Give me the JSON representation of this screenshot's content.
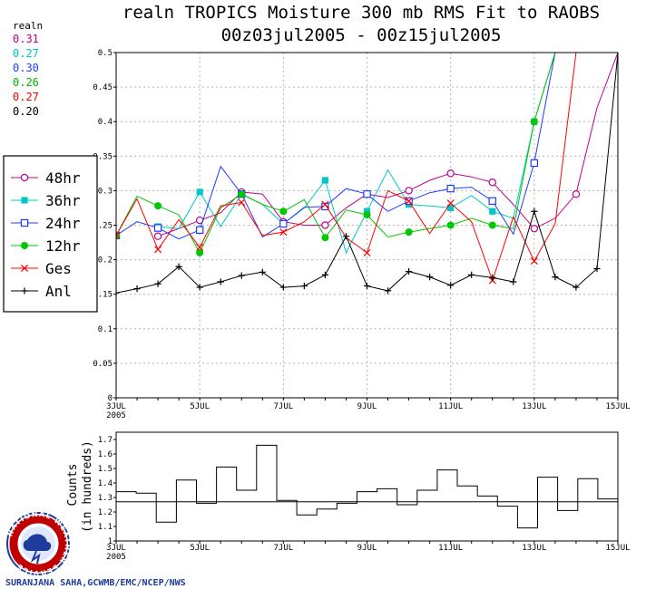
{
  "header": {
    "title_line1": "realn TROPICS Moisture 300 mb RMS Fit to RAOBS",
    "title_line2": "00z03jul2005 - 00z15jul2005"
  },
  "rms_panel": {
    "label": "realn",
    "values": [
      {
        "value": "0.31",
        "color": "#c0008c"
      },
      {
        "value": "0.27",
        "color": "#00c8c8"
      },
      {
        "value": "0.30",
        "color": "#1e3cff"
      },
      {
        "value": "0.26",
        "color": "#00b400"
      },
      {
        "value": "0.27",
        "color": "#ff0000"
      },
      {
        "value": "0.20",
        "color": "#000000"
      }
    ]
  },
  "legend": {
    "items": [
      {
        "label": "48hr",
        "marker": "open-circle",
        "color": "#c0008c"
      },
      {
        "label": "36hr",
        "marker": "filled-square",
        "color": "#00c8c8"
      },
      {
        "label": "24hr",
        "marker": "open-square",
        "color": "#1e3cff"
      },
      {
        "label": "12hr",
        "marker": "filled-circle",
        "color": "#00c800"
      },
      {
        "label": "Ges",
        "marker": "x",
        "color": "#ff0000"
      },
      {
        "label": "Anl",
        "marker": "plus",
        "color": "#000000"
      }
    ]
  },
  "lower_panel": {
    "ylabel_line1": "Counts",
    "ylabel_line2": "(in hundreds)"
  },
  "credit": {
    "text": "SURANJANA SAHA,GCWMB/EMC/NCEP/NWS",
    "logo_text": "NATIONAL WEATHER SERVICE"
  },
  "chart_data": [
    {
      "type": "line",
      "title": "realn TROPICS Moisture 300 mb RMS Fit to RAOBS",
      "subtitle": "00z03jul2005 - 00z15jul2005",
      "xlim": [
        0,
        24
      ],
      "ylim": [
        0,
        0.5
      ],
      "yticks": [
        "0",
        "0.05",
        "0.1",
        "0.15",
        "0.2",
        "0.25",
        "0.3",
        "0.35",
        "0.4",
        "0.45",
        "0.5"
      ],
      "xticks": [
        {
          "at": 0,
          "label": "3JUL",
          "sub": "2005"
        },
        {
          "at": 4,
          "label": "5JUL"
        },
        {
          "at": 8,
          "label": "7JUL"
        },
        {
          "at": 12,
          "label": "9JUL"
        },
        {
          "at": 16,
          "label": "11JUL"
        },
        {
          "at": 20,
          "label": "13JUL"
        },
        {
          "at": 24,
          "label": "15JUL"
        }
      ],
      "grid": true,
      "legend_position": "left",
      "series": [
        {
          "name": "48hr",
          "color": "#c0008c",
          "marker": "open-circle",
          "x": [
            0,
            1,
            2,
            3,
            4,
            5,
            6,
            7,
            8,
            9,
            10,
            11,
            12,
            13,
            14,
            15,
            16,
            17,
            18,
            19,
            20,
            21,
            22,
            23,
            24
          ],
          "y": [
            null,
            null,
            0.234,
            0.245,
            0.257,
            0.268,
            0.298,
            0.295,
            0.255,
            0.25,
            0.25,
            0.275,
            0.295,
            0.29,
            0.3,
            0.315,
            0.325,
            0.32,
            0.312,
            0.28,
            0.245,
            0.26,
            0.295,
            0.42,
            0.5
          ]
        },
        {
          "name": "36hr",
          "color": "#00c8c8",
          "marker": "filled-square",
          "x": [
            0,
            1,
            2,
            3,
            4,
            5,
            6,
            7,
            8,
            9,
            10,
            11,
            12,
            13,
            14,
            15,
            16,
            17,
            18,
            19,
            20,
            21,
            22,
            23,
            24
          ],
          "y": [
            null,
            null,
            0.248,
            0.245,
            0.298,
            0.248,
            0.295,
            0.28,
            0.252,
            0.275,
            0.315,
            0.21,
            0.27,
            0.33,
            0.28,
            0.278,
            0.275,
            0.293,
            0.27,
            0.26,
            0.4,
            0.5,
            null,
            null,
            null
          ]
        },
        {
          "name": "24hr",
          "color": "#1e3cff",
          "marker": "open-square",
          "x": [
            0,
            1,
            2,
            3,
            4,
            5,
            6,
            7,
            8,
            9,
            10,
            11,
            12,
            13,
            14,
            15,
            16,
            17,
            18,
            19,
            20,
            21,
            22,
            23,
            24
          ],
          "y": [
            0.235,
            0.255,
            0.246,
            0.23,
            0.243,
            0.335,
            0.295,
            0.233,
            0.252,
            0.276,
            0.277,
            0.303,
            0.295,
            0.27,
            0.285,
            0.297,
            0.303,
            0.305,
            0.285,
            0.237,
            0.34,
            0.5,
            null,
            null,
            null
          ]
        },
        {
          "name": "12hr",
          "color": "#00c800",
          "marker": "filled-circle",
          "x": [
            0,
            1,
            2,
            3,
            4,
            5,
            6,
            7,
            8,
            9,
            10,
            11,
            12,
            13,
            14,
            15,
            16,
            17,
            18,
            19,
            20,
            21,
            22,
            23,
            24
          ],
          "y": [
            0.235,
            0.292,
            0.278,
            0.265,
            0.21,
            0.275,
            0.295,
            0.28,
            0.27,
            0.287,
            0.232,
            0.272,
            0.265,
            0.233,
            0.24,
            0.245,
            0.25,
            0.26,
            0.25,
            0.245,
            0.4,
            0.5,
            null,
            null,
            null
          ]
        },
        {
          "name": "Ges",
          "color": "#ff0000",
          "marker": "x",
          "x": [
            0,
            1,
            2,
            3,
            4,
            5,
            6,
            7,
            8,
            9,
            10,
            11,
            12,
            13,
            14,
            15,
            16,
            17,
            18,
            19,
            20,
            21,
            22,
            23,
            24
          ],
          "y": [
            0.235,
            0.288,
            0.215,
            0.258,
            0.218,
            0.278,
            0.283,
            0.235,
            0.24,
            0.255,
            0.28,
            0.232,
            0.21,
            0.3,
            0.285,
            0.238,
            0.282,
            0.255,
            0.17,
            0.262,
            0.198,
            0.252,
            0.5,
            null,
            null
          ]
        },
        {
          "name": "Anl",
          "color": "#000000",
          "marker": "plus",
          "x": [
            0,
            1,
            2,
            3,
            4,
            5,
            6,
            7,
            8,
            9,
            10,
            11,
            12,
            13,
            14,
            15,
            16,
            17,
            18,
            19,
            20,
            21,
            22,
            23,
            24
          ],
          "y": [
            0.152,
            0.158,
            0.165,
            0.19,
            0.16,
            0.168,
            0.177,
            0.182,
            0.16,
            0.162,
            0.178,
            0.234,
            0.162,
            0.155,
            0.183,
            0.175,
            0.163,
            0.178,
            0.174,
            0.168,
            0.27,
            0.175,
            0.16,
            0.187,
            0.5
          ]
        }
      ]
    },
    {
      "type": "bar",
      "xlim": [
        0,
        24
      ],
      "ylim": [
        1,
        1.75
      ],
      "yticks": [
        "1",
        "1.1",
        "1.2",
        "1.3",
        "1.4",
        "1.5",
        "1.6",
        "1.7"
      ],
      "reference_line": 1.27,
      "ylabel": "Counts (in hundreds)",
      "xticks": [
        {
          "at": 0,
          "label": "3JUL",
          "sub": "2005"
        },
        {
          "at": 4,
          "label": "5JUL"
        },
        {
          "at": 8,
          "label": "7JUL"
        },
        {
          "at": 12,
          "label": "9JUL"
        },
        {
          "at": 16,
          "label": "11JUL"
        },
        {
          "at": 20,
          "label": "13JUL"
        },
        {
          "at": 24,
          "label": "15JUL"
        }
      ],
      "values": [
        1.34,
        1.33,
        1.13,
        1.42,
        1.26,
        1.51,
        1.35,
        1.66,
        1.28,
        1.18,
        1.22,
        1.26,
        1.34,
        1.36,
        1.25,
        1.35,
        1.49,
        1.38,
        1.31,
        1.24,
        1.09,
        1.44,
        1.21,
        1.43,
        1.29
      ]
    }
  ]
}
